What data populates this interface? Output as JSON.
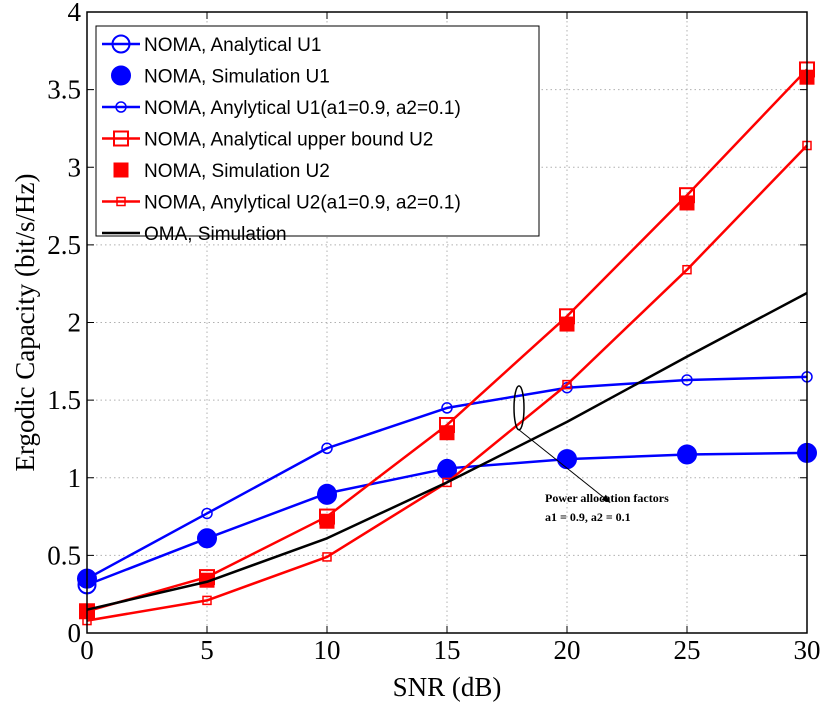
{
  "chart_data": {
    "type": "line",
    "title": "",
    "xlabel": "SNR (dB)",
    "ylabel": "Ergodic Capacity (bit/s/Hz)",
    "xlim": [
      0,
      30
    ],
    "ylim": [
      0,
      4
    ],
    "xticks": [
      0,
      5,
      10,
      15,
      20,
      25,
      30
    ],
    "yticks": [
      0,
      0.5,
      1,
      1.5,
      2,
      2.5,
      3,
      3.5,
      4
    ],
    "xtick_labels": [
      "0",
      "5",
      "10",
      "15",
      "20",
      "25",
      "30"
    ],
    "ytick_labels": [
      "0",
      "0.5",
      "1",
      "1.5",
      "2",
      "2.5",
      "3",
      "3.5",
      "4"
    ],
    "grid": true,
    "legend_position": "top-left",
    "x": [
      0,
      5,
      10,
      15,
      20,
      25,
      30
    ],
    "series": [
      {
        "name": "NOMA, Analytical U1",
        "color": "#0000ff",
        "line": "solid",
        "marker": "circle-open-large",
        "values": [
          0.31,
          0.61,
          0.9,
          1.06,
          1.12,
          1.15,
          1.16
        ]
      },
      {
        "name": "NOMA, Simulation U1",
        "color": "#0000ff",
        "line": "none",
        "marker": "circle-filled-large",
        "values": [
          0.35,
          0.61,
          0.89,
          1.05,
          1.12,
          1.15,
          1.16
        ]
      },
      {
        "name": "NOMA, Anylytical U1(a1=0.9, a2=0.1)",
        "color": "#0000ff",
        "line": "solid",
        "marker": "circle-open-small",
        "values": [
          0.35,
          0.77,
          1.19,
          1.45,
          1.58,
          1.63,
          1.65
        ]
      },
      {
        "name": "NOMA, Analytical upper bound U2",
        "color": "#ff0000",
        "line": "solid",
        "marker": "square-open-large",
        "values": [
          0.14,
          0.36,
          0.75,
          1.34,
          2.04,
          2.82,
          3.63
        ]
      },
      {
        "name": "NOMA, Simulation U2",
        "color": "#ff0000",
        "line": "none",
        "marker": "square-filled-large",
        "values": [
          0.14,
          0.34,
          0.72,
          1.29,
          1.99,
          2.77,
          3.58
        ]
      },
      {
        "name": "NOMA, Anylytical U2(a1=0.9, a2=0.1)",
        "color": "#ff0000",
        "line": "solid",
        "marker": "square-open-small",
        "values": [
          0.08,
          0.21,
          0.49,
          0.97,
          1.6,
          2.34,
          3.14
        ]
      },
      {
        "name": "OMA, Simulation",
        "color": "#000000",
        "line": "solid",
        "marker": "none",
        "values": [
          0.15,
          0.33,
          0.61,
          0.97,
          1.36,
          1.78,
          2.19
        ]
      }
    ],
    "annotation": {
      "lines": [
        "Power allocation factors",
        "a1 = 0.9, a2 = 0.1"
      ],
      "ellipse_center": [
        18,
        1.45
      ],
      "arrow_tip": [
        21.8,
        0.84
      ]
    }
  }
}
